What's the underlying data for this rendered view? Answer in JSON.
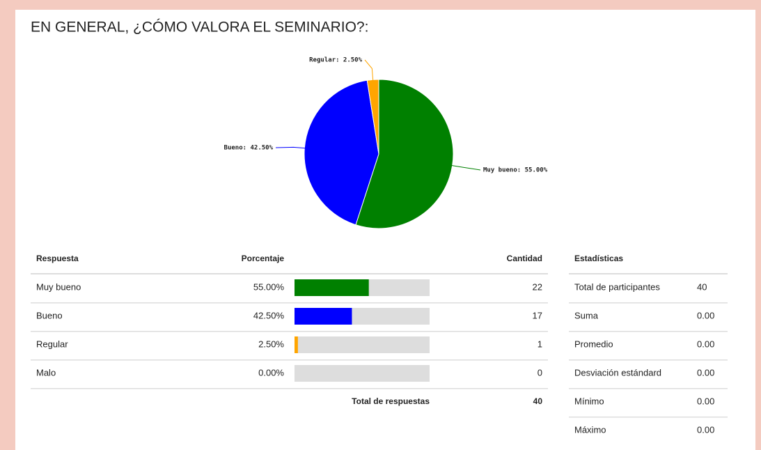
{
  "title": "EN GENERAL, ¿CÓMO VALORA EL SEMINARIO?:",
  "chart_data": {
    "type": "pie",
    "categories": [
      "Muy bueno",
      "Bueno",
      "Regular"
    ],
    "values": [
      55,
      42.5,
      2.5
    ],
    "value_labels": [
      "Muy bueno: 55.00%",
      "Bueno: 42.50%",
      "Regular: 2.50%"
    ],
    "colors": [
      "#008000",
      "#0000ff",
      "#ffa500"
    ]
  },
  "responses": {
    "headers": [
      "Respuesta",
      "Porcentaje",
      "Cantidad"
    ],
    "rows": [
      {
        "label": "Muy bueno",
        "percent": 55,
        "percent_label": "55.00%",
        "count": 22,
        "color": "#008000"
      },
      {
        "label": "Bueno",
        "percent": 42.5,
        "percent_label": "42.50%",
        "count": 17,
        "color": "#0000ff"
      },
      {
        "label": "Regular",
        "percent": 2.5,
        "percent_label": "2.50%",
        "count": 1,
        "color": "#ffa500"
      },
      {
        "label": "Malo",
        "percent": 0,
        "percent_label": "0.00%",
        "count": 0,
        "color": "#808080"
      }
    ],
    "total_label": "Total de respuestas",
    "total": 40
  },
  "stats": {
    "header": "Estadísticas",
    "rows": [
      [
        "Total de participantes",
        "40"
      ],
      [
        "Suma",
        "0.00"
      ],
      [
        "Promedio",
        "0.00"
      ],
      [
        "Desviación estándard",
        "0.00"
      ],
      [
        "Mínimo",
        "0.00"
      ],
      [
        "Máximo",
        "0.00"
      ]
    ]
  }
}
